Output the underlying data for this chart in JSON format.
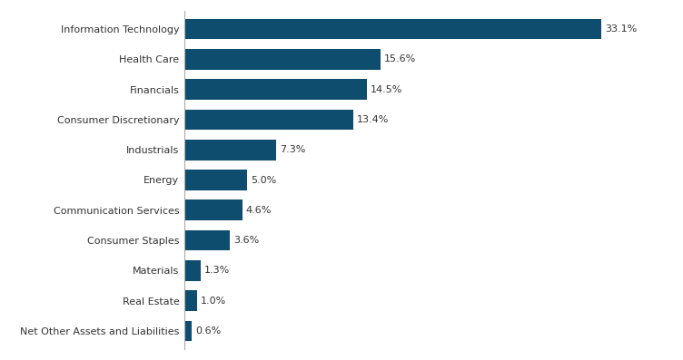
{
  "categories": [
    "Net Other Assets and Liabilities",
    "Real Estate",
    "Materials",
    "Consumer Staples",
    "Communication Services",
    "Energy",
    "Industrials",
    "Consumer Discretionary",
    "Financials",
    "Health Care",
    "Information Technology"
  ],
  "values": [
    0.6,
    1.0,
    1.3,
    3.6,
    4.6,
    5.0,
    7.3,
    13.4,
    14.5,
    15.6,
    33.1
  ],
  "bar_color": "#0e4d6e",
  "label_fontsize": 8.0,
  "value_fontsize": 8.0,
  "background_color": "#ffffff",
  "bar_height": 0.68,
  "xlim": [
    0,
    38
  ],
  "label_color": "#333333",
  "spine_color": "#aaaaaa"
}
